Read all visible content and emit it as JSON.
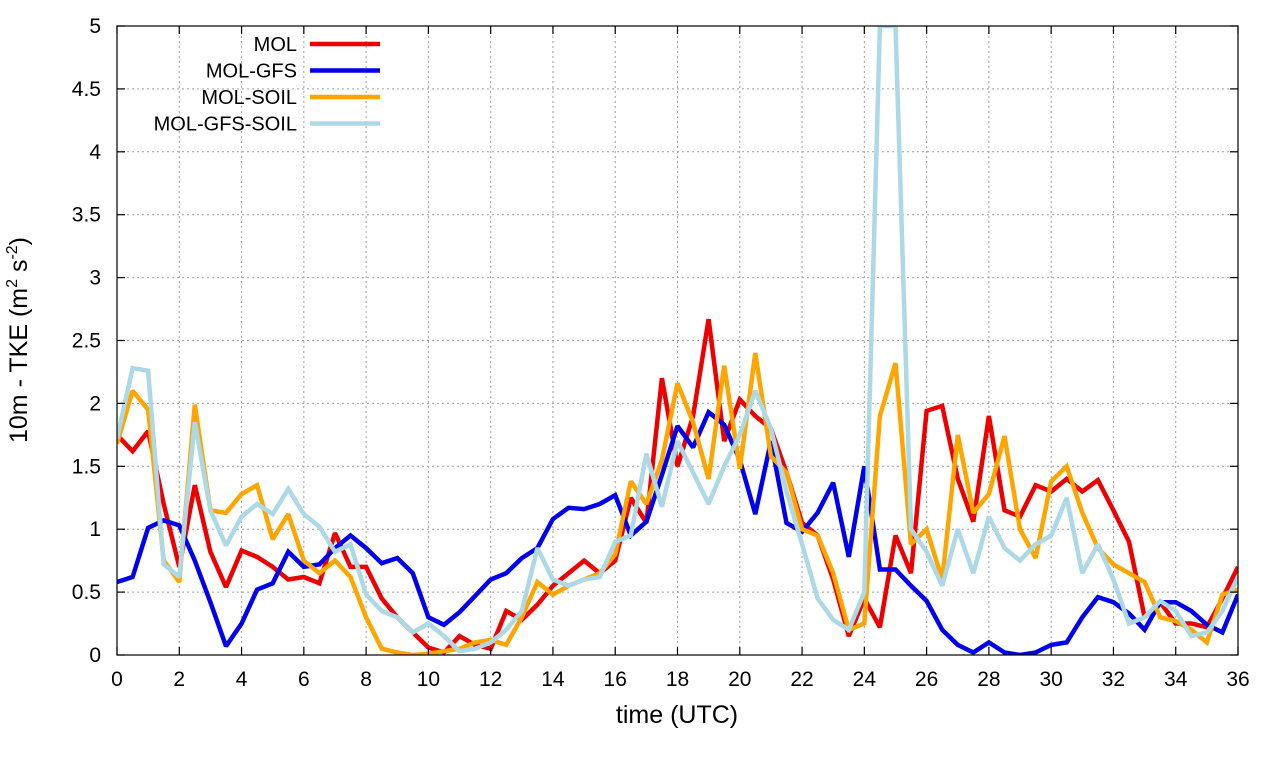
{
  "chart_data": {
    "type": "line",
    "title": "",
    "xlabel": "time (UTC)",
    "ylabel_parts": [
      "10m - TKE (m",
      "2",
      " s",
      "-2",
      ")"
    ],
    "xlim": [
      0,
      36
    ],
    "ylim": [
      0,
      5
    ],
    "x_ticks": [
      "0",
      "2",
      "4",
      "6",
      "8",
      "10",
      "12",
      "14",
      "16",
      "18",
      "20",
      "22",
      "24",
      "26",
      "28",
      "30",
      "32",
      "34",
      "36"
    ],
    "y_ticks": [
      "0",
      "0.5",
      "1",
      "1.5",
      "2",
      "2.5",
      "3",
      "3.5",
      "4",
      "4.5",
      "5"
    ],
    "grid": true,
    "legend_position": "top-left",
    "x": [
      0,
      0.5,
      1,
      1.5,
      2,
      2.5,
      3,
      3.5,
      4,
      4.5,
      5,
      5.5,
      6,
      6.5,
      7,
      7.5,
      8,
      8.5,
      9,
      9.5,
      10,
      10.5,
      11,
      11.5,
      12,
      12.5,
      13,
      13.5,
      14,
      14.5,
      15,
      15.5,
      16,
      16.5,
      17,
      17.5,
      18,
      18.5,
      19,
      19.5,
      20,
      20.5,
      21,
      21.5,
      22,
      22.5,
      23,
      23.5,
      24,
      24.5,
      25,
      25.5,
      26,
      26.5,
      27,
      27.5,
      28,
      28.5,
      29,
      29.5,
      30,
      30.5,
      31,
      31.5,
      32,
      32.5,
      33,
      33.5,
      34,
      34.5,
      35,
      35.5,
      36
    ],
    "series": [
      {
        "name": "MOL",
        "color": "#ee0000",
        "values": [
          1.75,
          1.62,
          1.78,
          1.2,
          0.7,
          1.35,
          0.82,
          0.54,
          0.83,
          0.78,
          0.7,
          0.6,
          0.62,
          0.57,
          0.97,
          0.7,
          0.7,
          0.45,
          0.3,
          0.18,
          0.06,
          0.02,
          0.15,
          0.08,
          0.05,
          0.35,
          0.28,
          0.4,
          0.55,
          0.65,
          0.75,
          0.65,
          0.75,
          1.25,
          1.05,
          2.2,
          1.5,
          1.9,
          2.67,
          1.7,
          2.03,
          1.9,
          1.8,
          1.45,
          1.05,
          0.95,
          0.6,
          0.15,
          0.45,
          0.22,
          0.95,
          0.65,
          1.94,
          1.98,
          1.4,
          1.06,
          1.9,
          1.15,
          1.1,
          1.35,
          1.3,
          1.4,
          1.3,
          1.39,
          1.15,
          0.9,
          0.3,
          0.42,
          0.25,
          0.25,
          0.22,
          0.45,
          0.7
        ]
      },
      {
        "name": "MOL-GFS",
        "color": "#0000ee",
        "values": [
          0.58,
          0.62,
          1.01,
          1.07,
          1.03,
          0.75,
          0.42,
          0.07,
          0.25,
          0.52,
          0.57,
          0.82,
          0.7,
          0.72,
          0.85,
          0.95,
          0.85,
          0.73,
          0.77,
          0.65,
          0.3,
          0.24,
          0.34,
          0.47,
          0.6,
          0.65,
          0.77,
          0.85,
          1.08,
          1.17,
          1.16,
          1.2,
          1.27,
          0.95,
          1.06,
          1.43,
          1.82,
          1.65,
          1.93,
          1.83,
          1.55,
          1.12,
          1.7,
          1.05,
          0.98,
          1.13,
          1.37,
          0.78,
          1.5,
          0.68,
          0.68,
          0.55,
          0.43,
          0.2,
          0.08,
          0.02,
          0.1,
          0.02,
          0.0,
          0.02,
          0.08,
          0.1,
          0.3,
          0.46,
          0.42,
          0.33,
          0.2,
          0.42,
          0.42,
          0.35,
          0.24,
          0.18,
          0.48
        ]
      },
      {
        "name": "MOL-SOIL",
        "color": "#ffa500",
        "values": [
          1.68,
          2.1,
          1.95,
          0.75,
          0.58,
          1.99,
          1.15,
          1.13,
          1.28,
          1.35,
          0.92,
          1.12,
          0.75,
          0.65,
          0.75,
          0.62,
          0.3,
          0.05,
          0.02,
          0.0,
          0.01,
          0.03,
          0.05,
          0.1,
          0.12,
          0.08,
          0.3,
          0.58,
          0.48,
          0.55,
          0.6,
          0.65,
          0.8,
          1.38,
          1.2,
          1.55,
          2.16,
          1.85,
          1.4,
          2.3,
          1.48,
          2.4,
          1.58,
          1.45,
          1.0,
          0.95,
          0.65,
          0.2,
          0.25,
          1.9,
          2.32,
          0.88,
          1.0,
          0.6,
          1.75,
          1.13,
          1.28,
          1.74,
          1.0,
          0.77,
          1.38,
          1.5,
          1.13,
          0.85,
          0.72,
          0.65,
          0.58,
          0.3,
          0.27,
          0.2,
          0.1,
          0.48,
          0.52
        ]
      },
      {
        "name": "MOL-GFS-SOIL",
        "color": "#add8e6",
        "values": [
          1.72,
          2.28,
          2.26,
          0.72,
          0.62,
          1.85,
          1.15,
          0.87,
          1.1,
          1.2,
          1.12,
          1.32,
          1.12,
          1.02,
          0.82,
          0.88,
          0.48,
          0.35,
          0.3,
          0.18,
          0.25,
          0.15,
          0.03,
          0.05,
          0.1,
          0.2,
          0.35,
          0.85,
          0.6,
          0.55,
          0.6,
          0.62,
          0.9,
          0.95,
          1.6,
          1.18,
          1.7,
          1.45,
          1.2,
          1.5,
          1.75,
          2.1,
          1.8,
          1.3,
          0.88,
          0.45,
          0.28,
          0.2,
          0.5,
          5.0,
          5.0,
          1.0,
          0.82,
          0.55,
          1.0,
          0.65,
          1.1,
          0.85,
          0.75,
          0.88,
          0.95,
          1.25,
          0.65,
          0.88,
          0.6,
          0.25,
          0.3,
          0.43,
          0.35,
          0.15,
          0.18,
          0.35,
          0.62
        ]
      }
    ]
  }
}
